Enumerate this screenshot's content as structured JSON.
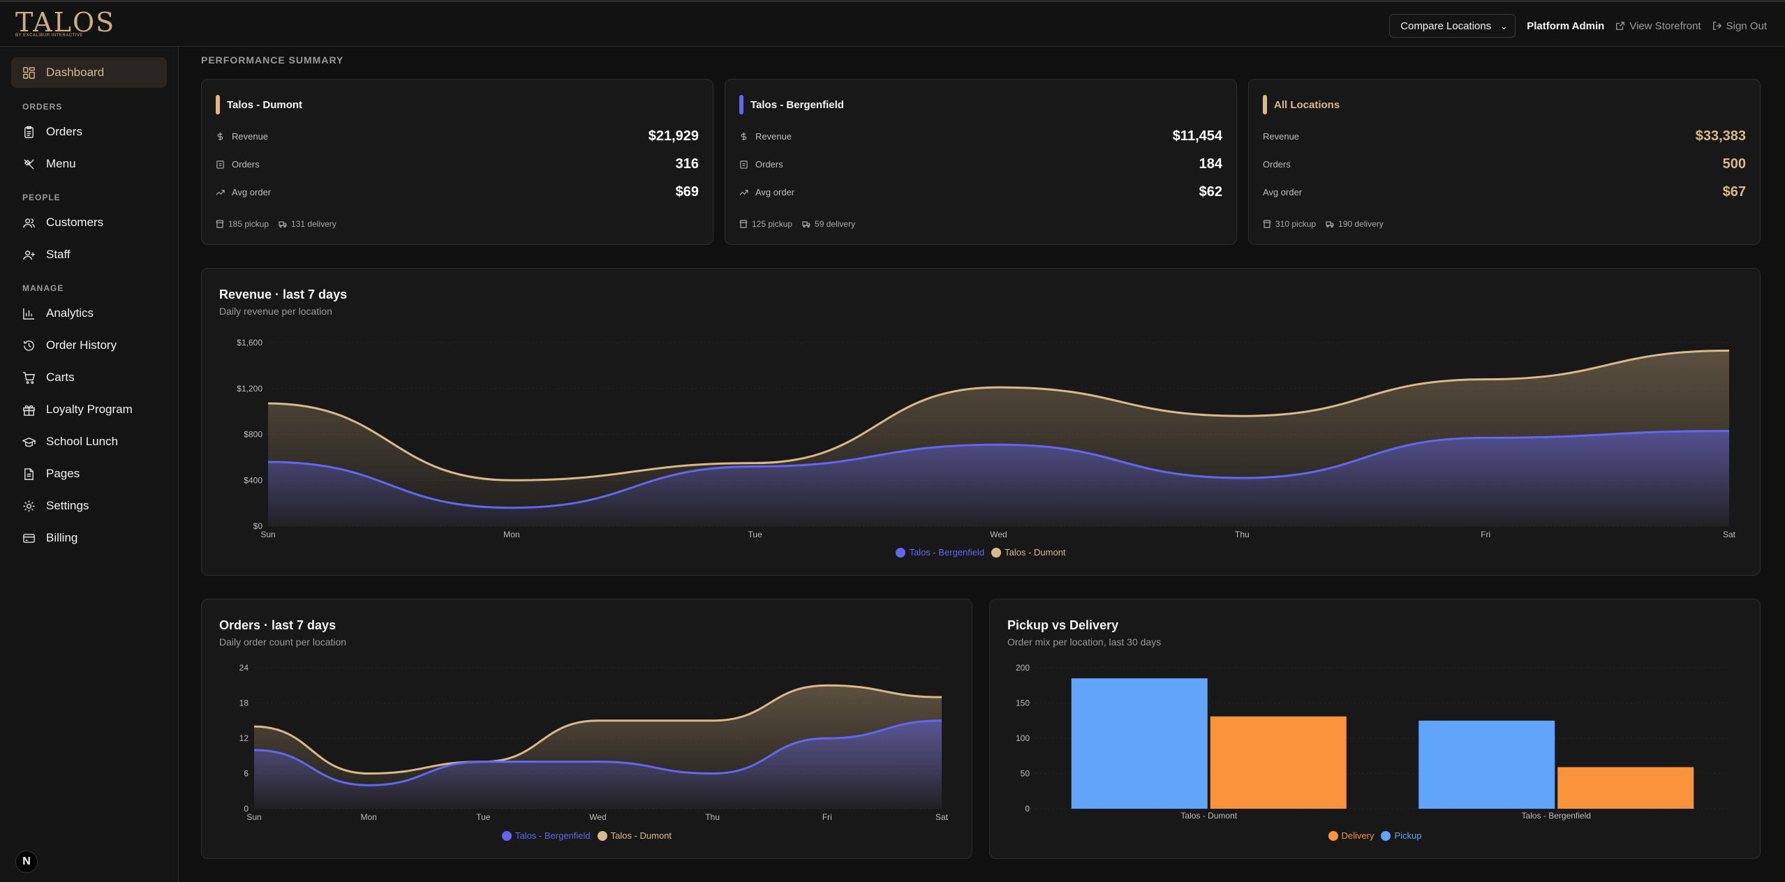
{
  "header": {
    "logo": "TALOS",
    "logo_sub": "BY EXCALIBUR INTERACTIVE",
    "compare_select": "Compare Locations",
    "admin_label": "Platform Admin",
    "storefront_link": "View Storefront",
    "signout_link": "Sign Out"
  },
  "sidebar": {
    "dashboard": "Dashboard",
    "sections": [
      "ORDERS",
      "PEOPLE",
      "MANAGE"
    ],
    "items": [
      {
        "label": "Orders",
        "icon": "clipboard-icon"
      },
      {
        "label": "Menu",
        "icon": "utensils-icon"
      },
      {
        "label": "Customers",
        "icon": "users-icon"
      },
      {
        "label": "Staff",
        "icon": "user-plus-icon"
      },
      {
        "label": "Analytics",
        "icon": "bar-chart-icon"
      },
      {
        "label": "Order History",
        "icon": "history-icon"
      },
      {
        "label": "Carts",
        "icon": "cart-icon"
      },
      {
        "label": "Loyalty Program",
        "icon": "gift-icon"
      },
      {
        "label": "School Lunch",
        "icon": "graduation-cap-icon"
      },
      {
        "label": "Pages",
        "icon": "file-icon"
      },
      {
        "label": "Settings",
        "icon": "gear-icon"
      },
      {
        "label": "Billing",
        "icon": "credit-card-icon"
      }
    ],
    "badge": "N"
  },
  "summary": {
    "title": "PERFORMANCE SUMMARY",
    "metric_labels": {
      "revenue": "Revenue",
      "orders": "Orders",
      "avg": "Avg order"
    },
    "locations": [
      {
        "name": "Talos - Dumont",
        "color": "#d9b98a",
        "revenue": "$21,929",
        "orders": "316",
        "avg": "$69",
        "pickup": "185 pickup",
        "delivery": "131 delivery"
      },
      {
        "name": "Talos - Bergenfield",
        "color": "#6366f1",
        "revenue": "$11,454",
        "orders": "184",
        "avg": "$62",
        "pickup": "125 pickup",
        "delivery": "59 delivery"
      },
      {
        "name": "All Locations",
        "color": "#d9b98a",
        "revenue": "$33,383",
        "orders": "500",
        "avg": "$67",
        "pickup": "310 pickup",
        "delivery": "190 delivery"
      }
    ]
  },
  "revenue_chart": {
    "title": "Revenue · last 7 days",
    "subtitle": "Daily revenue per location"
  },
  "orders_chart": {
    "title": "Orders · last 7 days",
    "subtitle": "Daily order count per location"
  },
  "mix_chart": {
    "title": "Pickup vs Delivery",
    "subtitle": "Order mix per location, last 30 days"
  },
  "chart_data": [
    {
      "type": "area",
      "title": "Revenue · last 7 days",
      "subtitle": "Daily revenue per location",
      "categories": [
        "Sun",
        "Mon",
        "Tue",
        "Wed",
        "Thu",
        "Fri",
        "Sat"
      ],
      "yticks": [
        "$0",
        "$400",
        "$800",
        "$1,200",
        "$1,600"
      ],
      "ylim": [
        0,
        1600
      ],
      "stacked": true,
      "series": [
        {
          "name": "Talos - Bergenfield",
          "color": "#6366f1",
          "values": [
            560,
            160,
            520,
            710,
            420,
            770,
            830
          ]
        },
        {
          "name": "Talos - Dumont",
          "color": "#d9b98a",
          "values": [
            510,
            240,
            30,
            500,
            540,
            510,
            700
          ]
        }
      ],
      "legend": "bottom-center"
    },
    {
      "type": "area",
      "title": "Orders · last 7 days",
      "subtitle": "Daily order count per location",
      "categories": [
        "Sun",
        "Mon",
        "Tue",
        "Wed",
        "Thu",
        "Fri",
        "Sat"
      ],
      "yticks": [
        "0",
        "6",
        "12",
        "18",
        "24"
      ],
      "ylim": [
        0,
        24
      ],
      "stacked": true,
      "series": [
        {
          "name": "Talos - Bergenfield",
          "color": "#6366f1",
          "values": [
            10,
            4,
            8,
            8,
            6,
            12,
            15
          ]
        },
        {
          "name": "Talos - Dumont",
          "color": "#d9b98a",
          "values": [
            4,
            2,
            0,
            7,
            9,
            9,
            4
          ]
        }
      ],
      "legend": "bottom-center"
    },
    {
      "type": "bar",
      "title": "Pickup vs Delivery",
      "subtitle": "Order mix per location, last 30 days",
      "categories": [
        "Talos - Dumont",
        "Talos - Bergenfield"
      ],
      "yticks": [
        "0",
        "50",
        "100",
        "150",
        "200"
      ],
      "ylim": [
        0,
        200
      ],
      "series": [
        {
          "name": "Pickup",
          "color": "#60a5fa",
          "values": [
            185,
            125
          ]
        },
        {
          "name": "Delivery",
          "color": "#fb923c",
          "values": [
            131,
            59
          ]
        }
      ],
      "legend_order": [
        "Delivery",
        "Pickup"
      ],
      "legend": "bottom-center"
    }
  ]
}
